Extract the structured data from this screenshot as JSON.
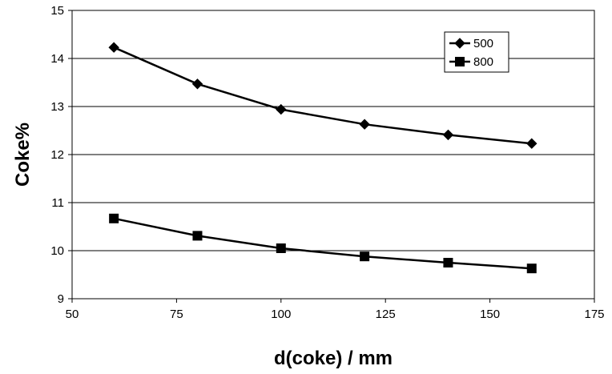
{
  "chart_data": {
    "type": "line",
    "title": "",
    "xlabel": "d(coke) / mm",
    "ylabel": "Coke%",
    "xlim": [
      50,
      175
    ],
    "ylim": [
      9,
      15
    ],
    "x_ticks": [
      50,
      75,
      100,
      125,
      150,
      175
    ],
    "y_ticks": [
      9,
      10,
      11,
      12,
      13,
      14,
      15
    ],
    "grid": "horizontal major gridlines",
    "legend_position": "top-right",
    "series": [
      {
        "name": "500",
        "marker": "diamond",
        "color": "#000000",
        "x": [
          60,
          80,
          100,
          120,
          140,
          160
        ],
        "y": [
          14.23,
          13.47,
          12.94,
          12.63,
          12.41,
          12.23
        ]
      },
      {
        "name": "800",
        "marker": "square",
        "color": "#000000",
        "x": [
          60,
          80,
          100,
          120,
          140,
          160
        ],
        "y": [
          10.67,
          10.31,
          10.05,
          9.88,
          9.75,
          9.63
        ]
      }
    ]
  }
}
